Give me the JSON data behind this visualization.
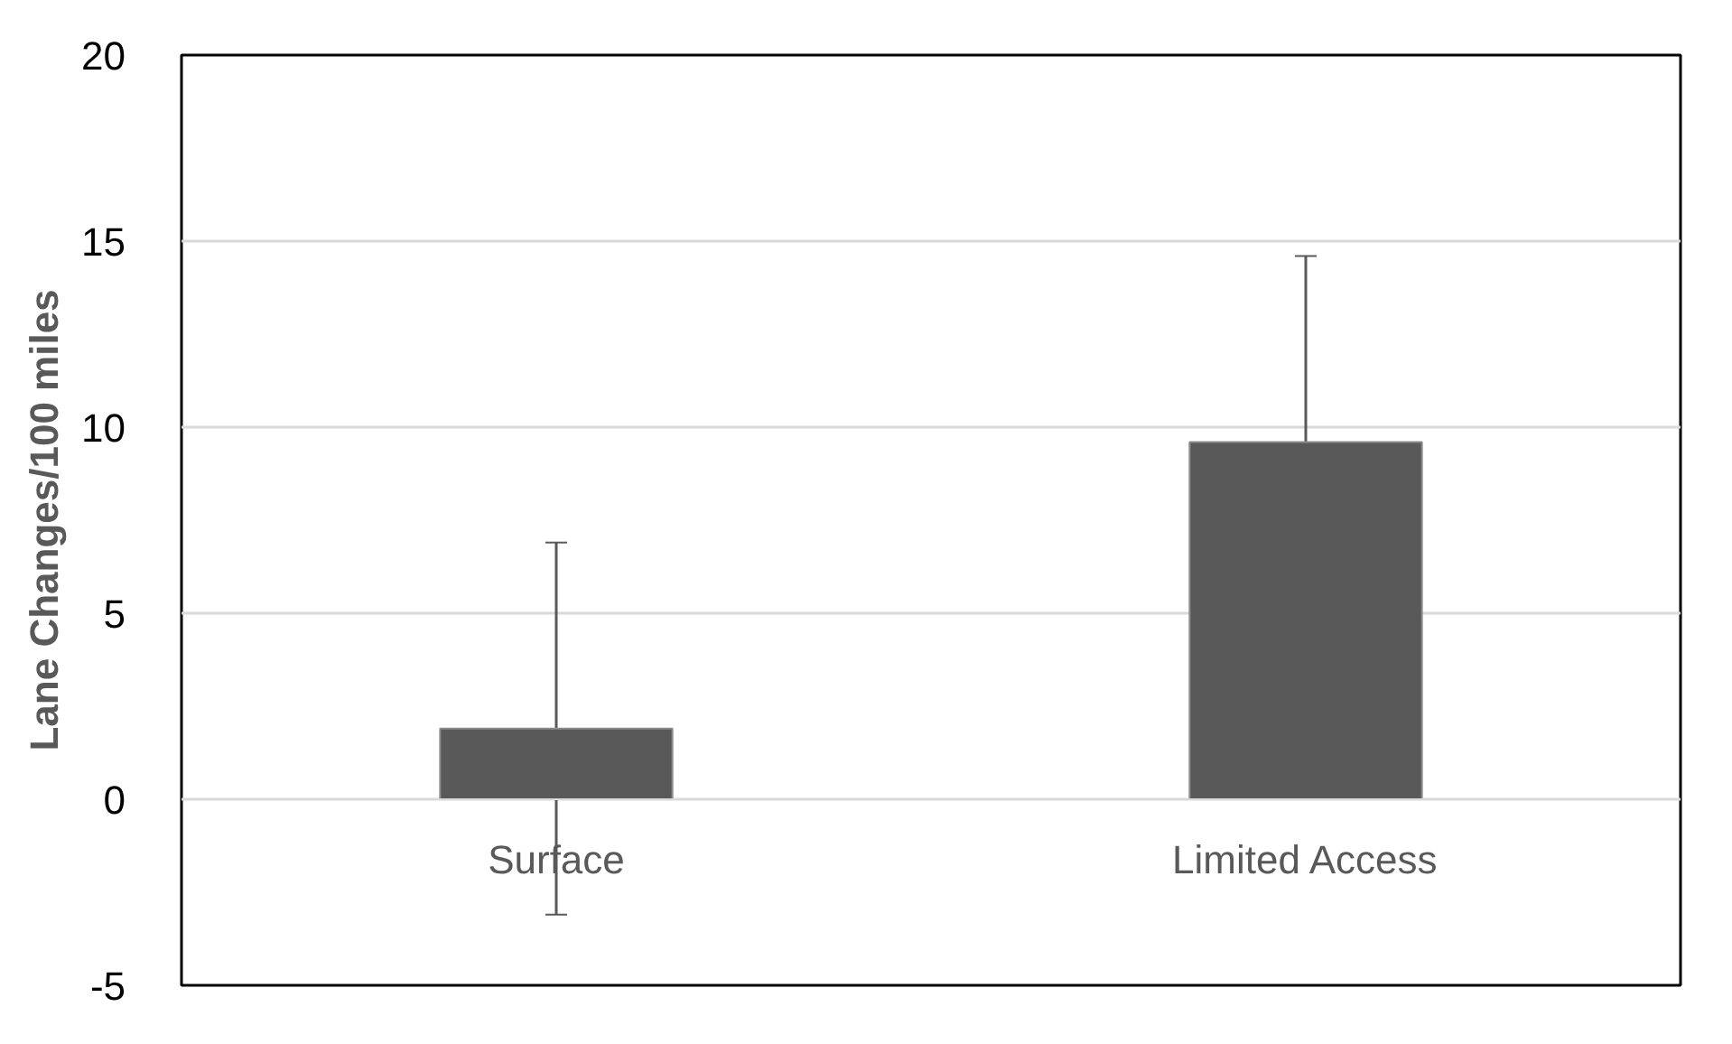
{
  "chart_data": {
    "type": "bar",
    "ylabel": "Lane Changes/100 miles",
    "categories": [
      "Surface",
      "Limited Access"
    ],
    "values": [
      1.9,
      9.6
    ],
    "errors": [
      5,
      5
    ],
    "color": "#595959",
    "ylim": [
      -5,
      20
    ],
    "yticks": [
      -5,
      0,
      5,
      10,
      15,
      20
    ],
    "grid": "y"
  }
}
